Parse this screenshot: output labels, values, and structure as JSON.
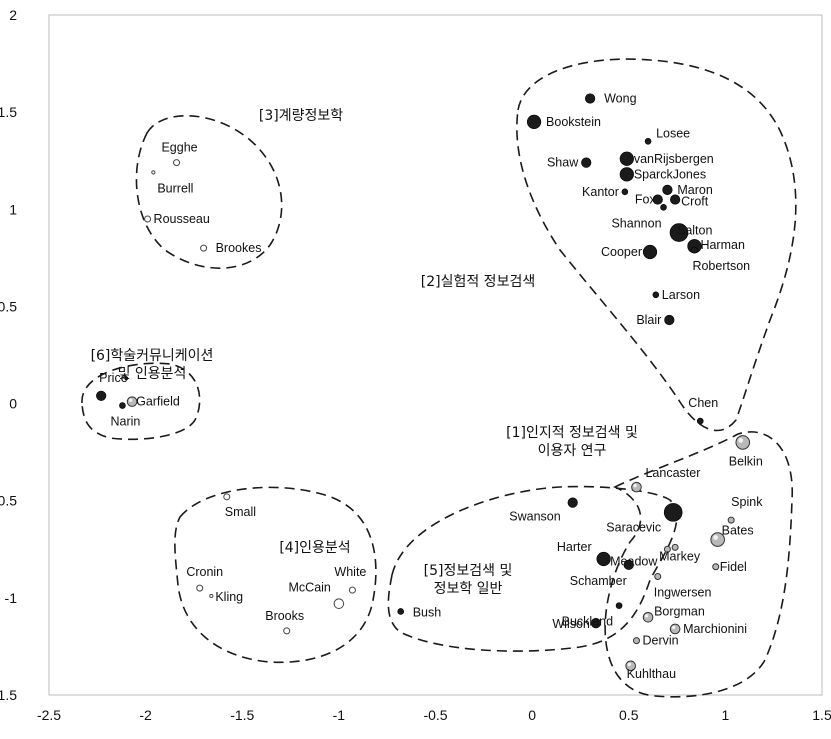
{
  "chart_data": {
    "type": "scatter",
    "title": "",
    "xlabel": "",
    "ylabel": "",
    "xlim": [
      -2.5,
      1.5
    ],
    "ylim": [
      -1.5,
      2
    ],
    "x_ticks": [
      "-2.5",
      "-2",
      "-1.5",
      "-1",
      "-0.5",
      "0",
      "0.5",
      "1",
      "1.5"
    ],
    "y_ticks": [
      "2",
      "1.5",
      "1",
      "0.5",
      "0",
      "-0.5",
      "-1",
      "-1.5"
    ],
    "grid": false,
    "points": [
      {
        "label": "Wong",
        "x": 0.3,
        "y": 1.57,
        "size": "medium",
        "style": "dark"
      },
      {
        "label": "Bookstein",
        "x": 0.01,
        "y": 1.45,
        "size": "large",
        "style": "dark"
      },
      {
        "label": "Losee",
        "x": 0.6,
        "y": 1.35,
        "size": "small",
        "style": "dark"
      },
      {
        "label": "Shaw",
        "x": 0.28,
        "y": 1.24,
        "size": "medium",
        "style": "dark"
      },
      {
        "label": "vanRijsbergen",
        "x": 0.49,
        "y": 1.26,
        "size": "large",
        "style": "dark"
      },
      {
        "label": "SparckJones",
        "x": 0.49,
        "y": 1.18,
        "size": "large",
        "style": "dark"
      },
      {
        "label": "Maron",
        "x": 0.7,
        "y": 1.1,
        "size": "medium",
        "style": "dark"
      },
      {
        "label": "Kantor",
        "x": 0.48,
        "y": 1.09,
        "size": "small",
        "style": "dark"
      },
      {
        "label": "Fox",
        "x": 0.65,
        "y": 1.05,
        "size": "medium",
        "style": "dark"
      },
      {
        "label": "Croft",
        "x": 0.74,
        "y": 1.05,
        "size": "medium",
        "style": "dark"
      },
      {
        "label": "Shannon",
        "x": 0.68,
        "y": 1.01,
        "size": "small",
        "style": "dark"
      },
      {
        "label": "Salton",
        "x": 0.76,
        "y": 0.88,
        "size": "xlarge",
        "style": "dark"
      },
      {
        "label": "Harman",
        "x": 0.84,
        "y": 0.81,
        "size": "large",
        "style": "dark"
      },
      {
        "label": "Cooper",
        "x": 0.61,
        "y": 0.78,
        "size": "large",
        "style": "dark"
      },
      {
        "label": "Robertson",
        "x": 0.84,
        "y": 0.79,
        "size": "small",
        "style": "dark"
      },
      {
        "label": "Larson",
        "x": 0.64,
        "y": 0.56,
        "size": "small",
        "style": "dark"
      },
      {
        "label": "Blair",
        "x": 0.71,
        "y": 0.43,
        "size": "medium",
        "style": "dark"
      },
      {
        "label": "Chen",
        "x": 0.87,
        "y": -0.09,
        "size": "small",
        "style": "dark"
      },
      {
        "label": "Egghe",
        "x": -1.84,
        "y": 1.24,
        "size": "small",
        "style": "hollow"
      },
      {
        "label": "Burrell",
        "x": -1.96,
        "y": 1.19,
        "size": "tiny",
        "style": "hollow"
      },
      {
        "label": "Rousseau",
        "x": -1.99,
        "y": 0.95,
        "size": "small",
        "style": "hollow"
      },
      {
        "label": "Brookes",
        "x": -1.7,
        "y": 0.8,
        "size": "small",
        "style": "hollow"
      },
      {
        "label": "Price",
        "x": -2.23,
        "y": 0.04,
        "size": "medium",
        "style": "dark"
      },
      {
        "label": "",
        "x": -2.1,
        "y": 0.13,
        "size": "tiny",
        "style": "dark"
      },
      {
        "label": "Narin",
        "x": -2.12,
        "y": -0.01,
        "size": "small",
        "style": "dark"
      },
      {
        "label": "Garfield",
        "x": -2.07,
        "y": 0.01,
        "size": "medium",
        "style": "gray"
      },
      {
        "label": "Small",
        "x": -1.58,
        "y": -0.48,
        "size": "small",
        "style": "hollow"
      },
      {
        "label": "Cronin",
        "x": -1.72,
        "y": -0.95,
        "size": "small",
        "style": "hollow"
      },
      {
        "label": "Kling",
        "x": -1.66,
        "y": -0.99,
        "size": "tiny",
        "style": "hollow"
      },
      {
        "label": "McCain",
        "x": -1.0,
        "y": -1.03,
        "size": "medium",
        "style": "hollow"
      },
      {
        "label": "White",
        "x": -0.93,
        "y": -0.96,
        "size": "small",
        "style": "hollow"
      },
      {
        "label": "Brooks",
        "x": -1.27,
        "y": -1.17,
        "size": "small",
        "style": "hollow"
      },
      {
        "label": "Bush",
        "x": -0.68,
        "y": -1.07,
        "size": "small",
        "style": "dark"
      },
      {
        "label": "Swanson",
        "x": 0.21,
        "y": -0.51,
        "size": "medium",
        "style": "dark"
      },
      {
        "label": "Saracevic",
        "x": 0.73,
        "y": -0.56,
        "size": "xlarge",
        "style": "dark"
      },
      {
        "label": "Harter",
        "x": 0.37,
        "y": -0.8,
        "size": "large",
        "style": "dark"
      },
      {
        "label": "Schamber",
        "x": 0.5,
        "y": -0.83,
        "size": "medium",
        "style": "dark"
      },
      {
        "label": "Buckland",
        "x": 0.45,
        "y": -1.04,
        "size": "small",
        "style": "dark"
      },
      {
        "label": "Wilson",
        "x": 0.33,
        "y": -1.13,
        "size": "medium",
        "style": "dark"
      },
      {
        "label": "Belkin",
        "x": 1.09,
        "y": -0.2,
        "size": "large",
        "style": "gray"
      },
      {
        "label": "Lancaster",
        "x": 0.54,
        "y": -0.43,
        "size": "medium",
        "style": "gray"
      },
      {
        "label": "Spink",
        "x": 1.03,
        "y": -0.6,
        "size": "small",
        "style": "gray"
      },
      {
        "label": "Bates",
        "x": 0.96,
        "y": -0.7,
        "size": "large",
        "style": "gray"
      },
      {
        "label": "Markey",
        "x": 0.74,
        "y": -0.74,
        "size": "small",
        "style": "gray"
      },
      {
        "label": "Meadow",
        "x": 0.7,
        "y": -0.75,
        "size": "small",
        "style": "gray"
      },
      {
        "label": "Fidel",
        "x": 0.95,
        "y": -0.84,
        "size": "small",
        "style": "gray"
      },
      {
        "label": "Ingwersen",
        "x": 0.65,
        "y": -0.89,
        "size": "small",
        "style": "gray"
      },
      {
        "label": "Borgman",
        "x": 0.6,
        "y": -1.1,
        "size": "medium",
        "style": "gray"
      },
      {
        "label": "Marchionini",
        "x": 0.74,
        "y": -1.16,
        "size": "medium",
        "style": "gray"
      },
      {
        "label": "Dervin",
        "x": 0.54,
        "y": -1.22,
        "size": "small",
        "style": "gray"
      },
      {
        "label": "Kuhlthau",
        "x": 0.51,
        "y": -1.35,
        "size": "medium",
        "style": "gray"
      }
    ],
    "clusters": [
      {
        "label": "[1]인지적 정보검색 및\n이용자 연구"
      },
      {
        "label": "[2]실험적 정보검색"
      },
      {
        "label": "[3]계량정보학"
      },
      {
        "label": "[4]인용분석"
      },
      {
        "label": "[5]정보검색 및\n정보학 일반"
      },
      {
        "label": "[6]학술커뮤니케이션\n및 인용분석"
      }
    ]
  }
}
